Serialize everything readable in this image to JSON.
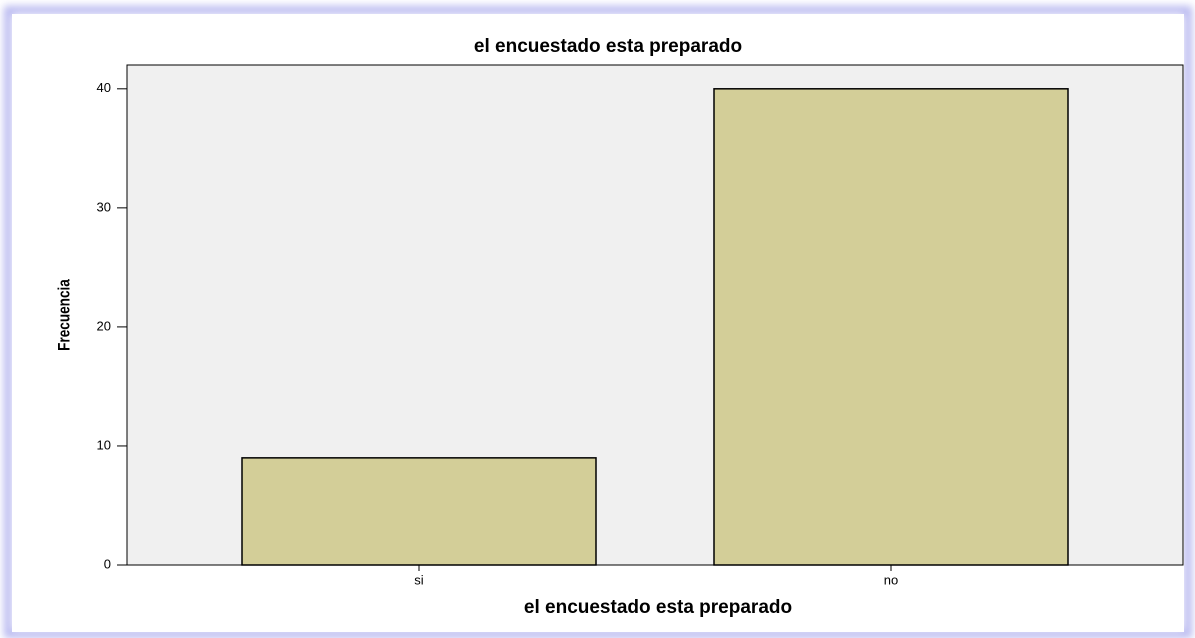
{
  "chart_data": {
    "type": "bar",
    "title": "el encuestado esta preparado",
    "x_label": "el encuestado esta preparado",
    "y_label": "Frecuencia",
    "categories": [
      "si",
      "no"
    ],
    "values": [
      9,
      40
    ],
    "color": "#d3ce98",
    "ylim": [
      0,
      42
    ],
    "yticks": [
      0,
      10,
      20,
      30,
      40
    ],
    "grid": false
  }
}
